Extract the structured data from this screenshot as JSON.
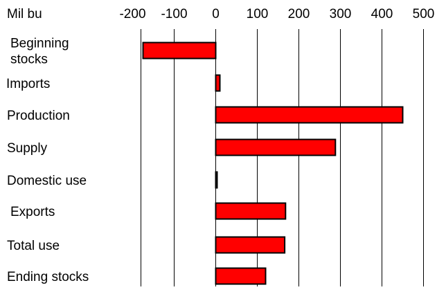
{
  "chart_data": {
    "type": "bar",
    "orientation": "horizontal",
    "title": "",
    "xlabel": "",
    "ylabel": "",
    "unit_label": "Mil bu",
    "categories": [
      [
        "Beginning",
        "stocks"
      ],
      [
        "Imports"
      ],
      [
        "Production"
      ],
      [
        "Supply"
      ],
      [
        "Domestic use"
      ],
      [
        "Exports"
      ],
      [
        "Total use"
      ],
      [
        "Ending stocks"
      ]
    ],
    "values": [
      -175,
      10,
      450,
      288,
      3,
      168,
      166,
      120
    ],
    "xlim": [
      -180,
      500
    ],
    "x_ticks": [
      -200,
      -100,
      0,
      100,
      200,
      300,
      400,
      500
    ],
    "x_tick_labels": [
      "-200",
      "-100",
      "0",
      "100",
      "200",
      "300",
      "400",
      "500"
    ],
    "grid": "vertical",
    "legend": "none",
    "colors": {
      "bar_fill": "#ff0000",
      "bar_stroke": "#000000",
      "grid": "#000000"
    }
  }
}
